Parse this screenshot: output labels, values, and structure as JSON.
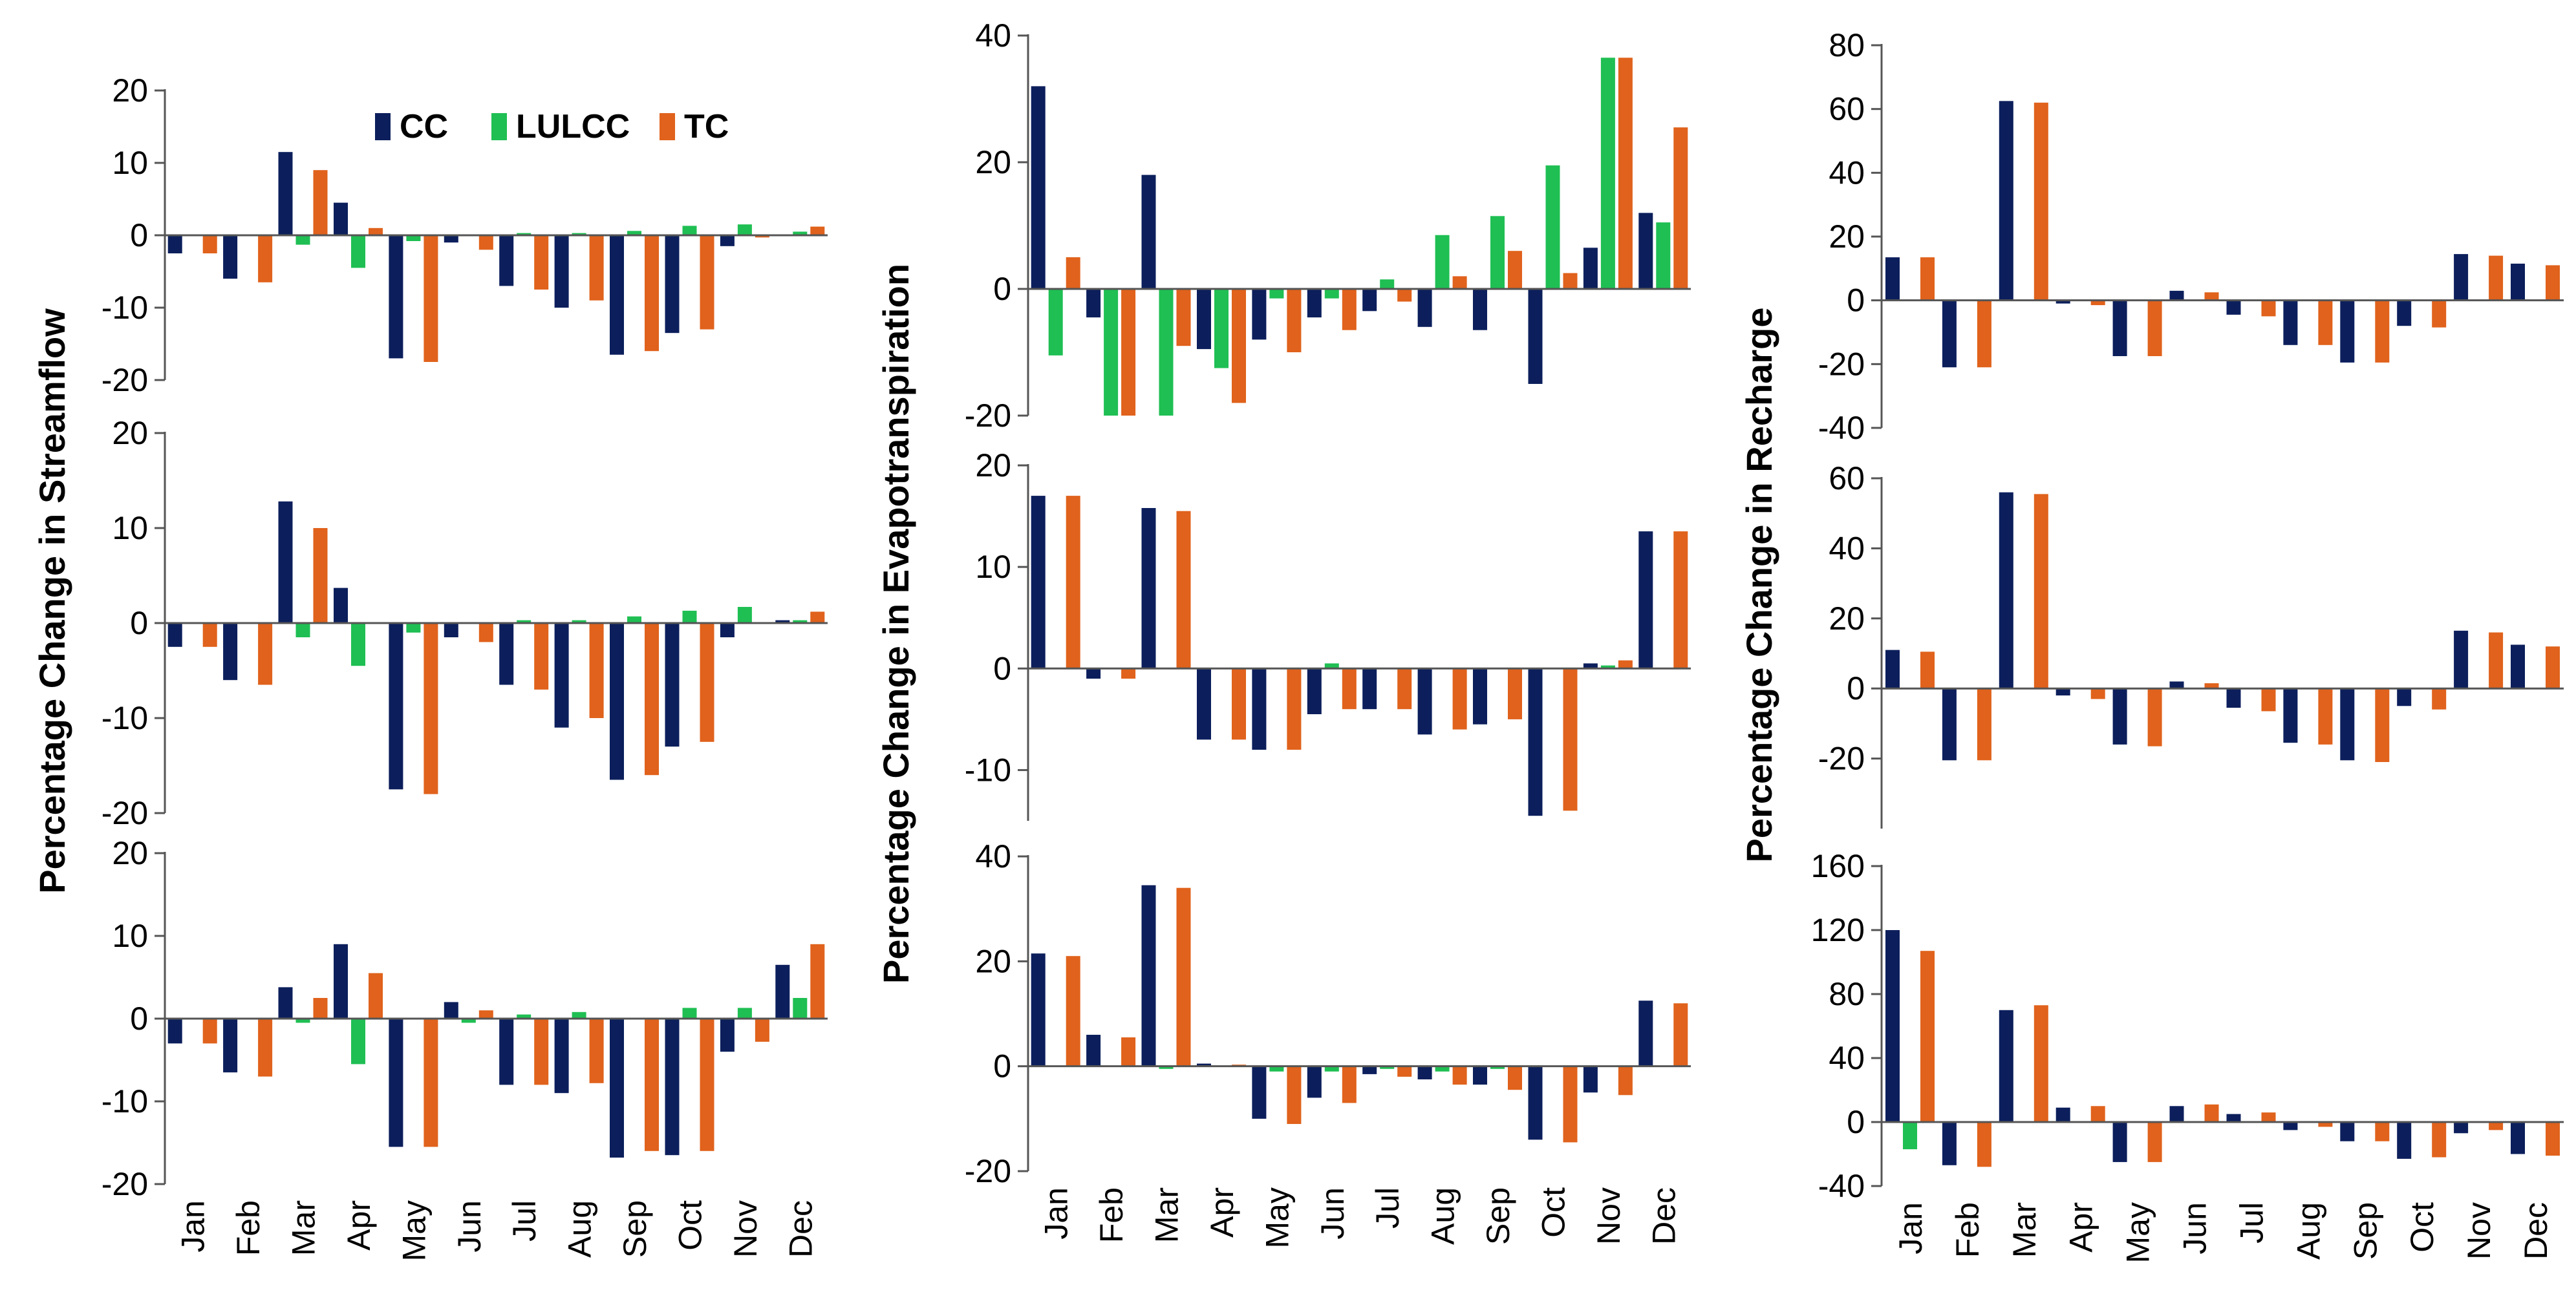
{
  "colors": {
    "CC": "#0c1f5c",
    "LULCC": "#1fbf53",
    "TC": "#e0621c",
    "axis": "#555555"
  },
  "legend": [
    {
      "key": "CC",
      "label": "CC"
    },
    {
      "key": "LULCC",
      "label": "LULCC"
    },
    {
      "key": "TC",
      "label": "TC"
    }
  ],
  "axis_titles": {
    "streamflow": "Percentage Change in Streamflow",
    "evapotranspiration": "Percentage Change in Evapotranspiration",
    "recharge": "Percentage Change in Recharge"
  },
  "chart_data": [
    {
      "id": "sf1",
      "type": "bar",
      "categories": [
        "Jan",
        "Feb",
        "Mar",
        "Apr",
        "May",
        "Jun",
        "Jul",
        "Aug",
        "Sep",
        "Oct",
        "Nov",
        "Dec"
      ],
      "ylim": [
        -20,
        20
      ],
      "yticks": [
        -20,
        -10,
        0,
        10,
        20
      ],
      "xlabels": false,
      "series": [
        {
          "name": "CC",
          "values": [
            -2.5,
            -6,
            11.5,
            4.5,
            -17,
            -1,
            -7,
            -10,
            -16.5,
            -13.5,
            -1.5,
            0
          ]
        },
        {
          "name": "LULCC",
          "values": [
            0,
            0,
            -1.3,
            -4.5,
            -0.8,
            0,
            0.3,
            0.3,
            0.6,
            1.3,
            1.5,
            0.5
          ]
        },
        {
          "name": "TC",
          "values": [
            -2.5,
            -6.5,
            9,
            1,
            -17.5,
            -2,
            -7.5,
            -9,
            -16,
            -13,
            -0.3,
            1.2
          ]
        }
      ]
    },
    {
      "id": "sf2",
      "type": "bar",
      "categories": [
        "Jan",
        "Feb",
        "Mar",
        "Apr",
        "May",
        "Jun",
        "Jul",
        "Aug",
        "Sep",
        "Oct",
        "Nov",
        "Dec"
      ],
      "ylim": [
        -20,
        20
      ],
      "yticks": [
        -20,
        -10,
        0,
        10,
        20
      ],
      "xlabels": false,
      "series": [
        {
          "name": "CC",
          "values": [
            -2.5,
            -6,
            12.8,
            3.7,
            -17.5,
            -1.5,
            -6.5,
            -11,
            -16.5,
            -13,
            -1.5,
            0.3
          ]
        },
        {
          "name": "LULCC",
          "values": [
            0,
            0,
            -1.5,
            -4.5,
            -1,
            0,
            0.3,
            0.3,
            0.7,
            1.3,
            1.7,
            0.3
          ]
        },
        {
          "name": "TC",
          "values": [
            -2.5,
            -6.5,
            10,
            0,
            -18,
            -2,
            -7,
            -10,
            -16,
            -12.5,
            0,
            1.2
          ]
        }
      ]
    },
    {
      "id": "sf3",
      "type": "bar",
      "categories": [
        "Jan",
        "Feb",
        "Mar",
        "Apr",
        "May",
        "Jun",
        "Jul",
        "Aug",
        "Sep",
        "Oct",
        "Nov",
        "Dec"
      ],
      "ylim": [
        -20,
        20
      ],
      "yticks": [
        -20,
        -10,
        0,
        10,
        20
      ],
      "xlabels": true,
      "series": [
        {
          "name": "CC",
          "values": [
            -3,
            -6.5,
            3.8,
            9,
            -15.5,
            2,
            -8,
            -9,
            -16.8,
            -16.5,
            -4,
            6.5
          ]
        },
        {
          "name": "LULCC",
          "values": [
            0,
            0,
            -0.5,
            -5.5,
            0,
            -0.5,
            0.5,
            0.8,
            0,
            1.3,
            1.3,
            2.5
          ]
        },
        {
          "name": "TC",
          "values": [
            -3,
            -7,
            2.5,
            5.5,
            -15.5,
            1,
            -8,
            -7.8,
            -16,
            -16,
            -2.8,
            9
          ]
        }
      ]
    },
    {
      "id": "et1",
      "type": "bar",
      "categories": [
        "Jan",
        "Feb",
        "Mar",
        "Apr",
        "May",
        "Jun",
        "Jul",
        "Aug",
        "Sep",
        "Oct",
        "Nov",
        "Dec"
      ],
      "ylim": [
        -20,
        40
      ],
      "yticks": [
        -20,
        0,
        20,
        40
      ],
      "xlabels": false,
      "series": [
        {
          "name": "CC",
          "values": [
            32,
            -4.5,
            18,
            -9.5,
            -8,
            -4.5,
            -3.5,
            -6,
            -6.5,
            -15,
            6.5,
            12
          ]
        },
        {
          "name": "LULCC",
          "values": [
            -10.5,
            -20,
            -20,
            -12.5,
            -1.5,
            -1.5,
            1.5,
            8.5,
            11.5,
            19.5,
            36.5,
            10.5
          ]
        },
        {
          "name": "TC",
          "values": [
            5,
            -20,
            -9,
            -18,
            -10,
            -6.5,
            -2,
            2,
            6,
            2.5,
            36.5,
            25.5
          ]
        }
      ]
    },
    {
      "id": "et2",
      "type": "bar",
      "categories": [
        "Jan",
        "Feb",
        "Mar",
        "Apr",
        "May",
        "Jun",
        "Jul",
        "Aug",
        "Sep",
        "Oct",
        "Nov",
        "Dec"
      ],
      "ylim": [
        -15,
        20
      ],
      "yticks": [
        -10,
        0,
        10,
        20
      ],
      "xlabels": false,
      "series": [
        {
          "name": "CC",
          "values": [
            17,
            -1,
            15.8,
            -7,
            -8,
            -4.5,
            -4,
            -6.5,
            -5.5,
            -14.5,
            0.5,
            13.5
          ]
        },
        {
          "name": "LULCC",
          "values": [
            0,
            0,
            0,
            0,
            0,
            0.5,
            0,
            0,
            0,
            0,
            0.3,
            0
          ]
        },
        {
          "name": "TC",
          "values": [
            17,
            -1,
            15.5,
            -7,
            -8,
            -4,
            -4,
            -6,
            -5,
            -14,
            0.8,
            13.5
          ]
        }
      ]
    },
    {
      "id": "et3",
      "type": "bar",
      "categories": [
        "Jan",
        "Feb",
        "Mar",
        "Apr",
        "May",
        "Jun",
        "Jul",
        "Aug",
        "Sep",
        "Oct",
        "Nov",
        "Dec"
      ],
      "ylim": [
        -20,
        40
      ],
      "yticks": [
        -20,
        0,
        20,
        40
      ],
      "xlabels": true,
      "series": [
        {
          "name": "CC",
          "values": [
            21.5,
            6,
            34.5,
            0.5,
            -10,
            -6,
            -1.5,
            -2.5,
            -3.5,
            -14,
            -5,
            12.5
          ]
        },
        {
          "name": "LULCC",
          "values": [
            0,
            0,
            -0.5,
            0,
            -1,
            -1,
            -0.5,
            -1,
            -0.5,
            0,
            0,
            0
          ]
        },
        {
          "name": "TC",
          "values": [
            21,
            5.5,
            34,
            0.3,
            -11,
            -7,
            -2,
            -3.5,
            -4.5,
            -14.5,
            -5.5,
            12
          ]
        }
      ]
    },
    {
      "id": "rc1",
      "type": "bar",
      "categories": [
        "Jan",
        "Feb",
        "Mar",
        "Apr",
        "May",
        "Jun",
        "Jul",
        "Aug",
        "Sep",
        "Oct",
        "Nov",
        "Dec"
      ],
      "ylim": [
        -40,
        80
      ],
      "yticks": [
        -40,
        -20,
        0,
        20,
        40,
        60,
        80
      ],
      "xlabels": false,
      "series": [
        {
          "name": "CC",
          "values": [
            13.5,
            -21,
            62.5,
            -1,
            -17.5,
            3,
            -4.5,
            -14,
            -19.5,
            -8,
            14.5,
            11.5
          ]
        },
        {
          "name": "LULCC",
          "values": [
            0,
            0,
            0,
            0,
            0,
            0,
            0,
            0,
            0,
            0,
            0,
            0
          ]
        },
        {
          "name": "TC",
          "values": [
            13.5,
            -21,
            62,
            -1.5,
            -17.5,
            2.5,
            -5,
            -14,
            -19.5,
            -8.5,
            14,
            11
          ]
        }
      ]
    },
    {
      "id": "rc2",
      "type": "bar",
      "categories": [
        "Jan",
        "Feb",
        "Mar",
        "Apr",
        "May",
        "Jun",
        "Jul",
        "Aug",
        "Sep",
        "Oct",
        "Nov",
        "Dec"
      ],
      "ylim": [
        -40,
        60
      ],
      "yticks": [
        -20,
        0,
        20,
        40,
        60
      ],
      "xlabels": false,
      "series": [
        {
          "name": "CC",
          "values": [
            11,
            -20.5,
            56,
            -2,
            -16,
            2,
            -5.5,
            -15.5,
            -20.5,
            -5,
            16.5,
            12.5
          ]
        },
        {
          "name": "LULCC",
          "values": [
            0,
            0,
            0,
            0,
            0,
            0,
            0,
            0,
            0,
            0,
            0,
            0
          ]
        },
        {
          "name": "TC",
          "values": [
            10.5,
            -20.5,
            55.5,
            -3,
            -16.5,
            1.5,
            -6.5,
            -16,
            -21,
            -6,
            16,
            12
          ]
        }
      ]
    },
    {
      "id": "rc3",
      "type": "bar",
      "categories": [
        "Jan",
        "Feb",
        "Mar",
        "Apr",
        "May",
        "Jun",
        "Jul",
        "Aug",
        "Sep",
        "Oct",
        "Nov",
        "Dec"
      ],
      "ylim": [
        -40,
        160
      ],
      "yticks": [
        -40,
        0,
        40,
        80,
        120,
        160
      ],
      "xlabels": true,
      "series": [
        {
          "name": "CC",
          "values": [
            120,
            -27,
            70,
            9,
            -25,
            10,
            5,
            -5,
            -12,
            -23,
            -7,
            -20
          ]
        },
        {
          "name": "LULCC",
          "values": [
            -17,
            0,
            0,
            0,
            0,
            0,
            0,
            0,
            0,
            0,
            0,
            0
          ]
        },
        {
          "name": "TC",
          "values": [
            107,
            -28,
            73,
            10,
            -25,
            11,
            6,
            -3,
            -12,
            -22,
            -5,
            -21
          ]
        }
      ]
    }
  ]
}
